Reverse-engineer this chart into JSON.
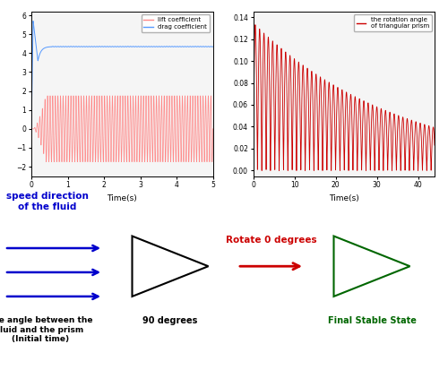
{
  "left_plot": {
    "drag_color": "#5599ff",
    "lift_color": "#ff8888",
    "drag_steady": 4.35,
    "drag_peak": 5.7,
    "drag_dip": 3.6,
    "lift_amplitude": 1.75,
    "lift_freq": 14.0,
    "xlim": [
      0,
      5
    ],
    "ylim": [
      -2.5,
      6.2
    ],
    "yticks": [
      -2,
      -1,
      0,
      1,
      2,
      3,
      4,
      5,
      6
    ],
    "xticks": [
      0,
      1,
      2,
      3,
      4,
      5
    ],
    "xlabel": "Time(s)",
    "legend_labels": [
      "lift coefficient",
      "drag coefficient"
    ]
  },
  "right_plot": {
    "color": "#cc0000",
    "xlim": [
      0,
      44
    ],
    "ylim": [
      -0.005,
      0.145
    ],
    "yticks": [
      0.0,
      0.02,
      0.04,
      0.06,
      0.08,
      0.1,
      0.12,
      0.14
    ],
    "xticks": [
      0,
      10,
      20,
      30,
      40
    ],
    "xlabel": "Time(s)",
    "legend_label": "the rotation angle\nof triangular prism",
    "peak_amplitude": 0.135,
    "decay_rate": 0.028,
    "freq": 0.95
  },
  "bottom": {
    "speed_text": "speed direction\nof the fluid",
    "speed_color": "#0000cc",
    "arrow_color": "#0000cc",
    "angle_text": "The angle between the\nfluid and the prism\n(Initial time)",
    "degrees_text": "90 degrees",
    "rotate_text": "Rotate 0 degrees",
    "rotate_color": "#cc0000",
    "final_text": "Final Stable State",
    "final_color": "#006600",
    "black_triangle_color": "#000000",
    "green_triangle_color": "#006600"
  }
}
